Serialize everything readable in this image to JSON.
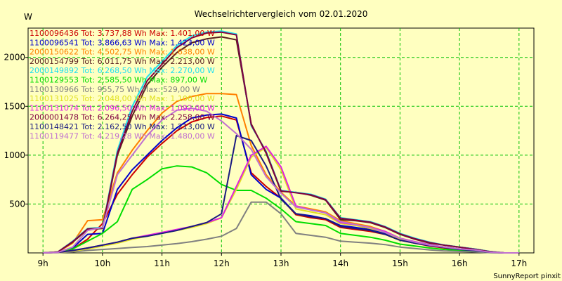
{
  "chart_data": {
    "type": "line",
    "title": "Wechselrichtervergleich vom 02.01.2020",
    "ylabel": "W",
    "xlabel": "",
    "footer": "SunnyReport pinxit",
    "xlim": [
      8.75,
      17.25
    ],
    "ylim": [
      0,
      2300
    ],
    "x_ticks": [
      {
        "value": 9,
        "label": "9h"
      },
      {
        "value": 10,
        "label": "10h"
      },
      {
        "value": 11,
        "label": "11h"
      },
      {
        "value": 12,
        "label": "12h"
      },
      {
        "value": 13,
        "label": "13h"
      },
      {
        "value": 14,
        "label": "14h"
      },
      {
        "value": 15,
        "label": "15h"
      },
      {
        "value": 16,
        "label": "16h"
      },
      {
        "value": 17,
        "label": "17h"
      }
    ],
    "y_ticks": [
      {
        "value": 500,
        "label": "500"
      },
      {
        "value": 1000,
        "label": "1000"
      },
      {
        "value": 1500,
        "label": "1500"
      },
      {
        "value": 2000,
        "label": "2000"
      }
    ],
    "grid": true,
    "legend_position": "top-left",
    "x": [
      9.0,
      9.25,
      9.5,
      9.75,
      10.0,
      10.25,
      10.5,
      10.75,
      11.0,
      11.25,
      11.5,
      11.75,
      12.0,
      12.25,
      12.5,
      12.75,
      13.0,
      13.25,
      13.5,
      13.75,
      14.0,
      14.25,
      14.5,
      14.75,
      15.0,
      15.25,
      15.5,
      15.75,
      16.0,
      16.25,
      16.5,
      16.75,
      17.0
    ],
    "series": [
      {
        "name": "1100096436",
        "legend": "1100096436 Tot: 3.737,88 Wh Max: 1.401,00 W",
        "color": "#cc0000",
        "values": [
          0,
          5,
          40,
          140,
          300,
          600,
          800,
          980,
          1120,
          1250,
          1340,
          1385,
          1400,
          1360,
          820,
          680,
          560,
          390,
          360,
          340,
          260,
          240,
          220,
          190,
          130,
          100,
          70,
          50,
          35,
          25,
          8,
          0,
          0
        ]
      },
      {
        "name": "1100096541",
        "legend": "1100096541 Tot: 3.866,63 Wh Max: 1.423,00 W",
        "color": "#0000cc",
        "values": [
          0,
          5,
          50,
          190,
          200,
          650,
          850,
          1000,
          1150,
          1280,
          1380,
          1410,
          1420,
          1380,
          800,
          650,
          560,
          400,
          380,
          350,
          280,
          260,
          240,
          200,
          140,
          110,
          80,
          60,
          40,
          30,
          10,
          0,
          0
        ]
      },
      {
        "name": "2000150622",
        "legend": "2000150622 Tot: 4.502,75 Wh Max: 1.638,00 W",
        "color": "#ff8000",
        "values": [
          0,
          10,
          100,
          330,
          340,
          820,
          1050,
          1250,
          1430,
          1550,
          1600,
          1630,
          1630,
          1620,
          1100,
          800,
          620,
          480,
          450,
          420,
          330,
          300,
          270,
          220,
          150,
          110,
          80,
          60,
          40,
          30,
          10,
          0,
          0
        ]
      },
      {
        "name": "2000154799",
        "legend": "2000154799 Tot: 6.011,75 Wh Max: 2.213,00 W",
        "color": "#5a2020",
        "values": [
          0,
          10,
          110,
          240,
          250,
          1000,
          1400,
          1720,
          1900,
          2050,
          2150,
          2190,
          2210,
          2180,
          1320,
          1020,
          630,
          620,
          590,
          540,
          340,
          330,
          310,
          260,
          190,
          140,
          100,
          80,
          60,
          40,
          15,
          0,
          0
        ]
      },
      {
        "name": "2000149892",
        "legend": "2000149892 Tot: 6.268,50 Wh Max: 2.270,00 W",
        "color": "#20e0f0",
        "values": [
          0,
          10,
          120,
          250,
          260,
          1050,
          1500,
          1800,
          1960,
          2120,
          2220,
          2260,
          2270,
          2240,
          1300,
          1040,
          640,
          620,
          600,
          550,
          360,
          340,
          320,
          270,
          200,
          150,
          110,
          80,
          60,
          40,
          15,
          0,
          0
        ]
      },
      {
        "name": "1100129553",
        "legend": "1100129553 Tot: 2.585,50 Wh Max: 897,00 W",
        "color": "#00dd00",
        "values": [
          0,
          5,
          40,
          120,
          200,
          320,
          650,
          750,
          860,
          890,
          880,
          820,
          700,
          640,
          640,
          560,
          450,
          320,
          300,
          280,
          200,
          180,
          160,
          130,
          90,
          70,
          50,
          35,
          25,
          15,
          5,
          0,
          0
        ]
      },
      {
        "name": "1100130966",
        "legend": "1100130966 Tot: 955,75 Wh Max: 529,00 W",
        "color": "#808080",
        "values": [
          0,
          3,
          10,
          25,
          35,
          45,
          55,
          65,
          80,
          95,
          115,
          140,
          170,
          250,
          520,
          520,
          400,
          200,
          180,
          160,
          120,
          110,
          100,
          85,
          60,
          45,
          30,
          20,
          15,
          10,
          3,
          0,
          0
        ]
      },
      {
        "name": "1100131025",
        "legend": "1100131025 Tot: 2.048,00 Wh Max: 1.100,00 W",
        "color": "#e0e020",
        "values": [
          0,
          5,
          20,
          40,
          70,
          100,
          140,
          170,
          200,
          230,
          260,
          300,
          360,
          650,
          980,
          1080,
          850,
          450,
          420,
          390,
          300,
          280,
          250,
          210,
          140,
          110,
          80,
          60,
          40,
          30,
          8,
          0,
          0
        ]
      },
      {
        "name": "1100131074",
        "legend": "1100131074 Tot: 2.096,50 Wh Max: 1.092,00 W",
        "color": "#e020e0",
        "values": [
          0,
          5,
          25,
          50,
          80,
          110,
          150,
          180,
          210,
          240,
          270,
          310,
          360,
          680,
          1000,
          1090,
          880,
          480,
          440,
          410,
          310,
          290,
          260,
          220,
          150,
          115,
          85,
          60,
          40,
          30,
          8,
          0,
          0
        ]
      },
      {
        "name": "2000001478",
        "legend": "2000001478 Tot: 6.264,25 Wh Max: 2.258,00 W",
        "color": "#800040",
        "values": [
          0,
          10,
          115,
          245,
          255,
          1020,
          1450,
          1760,
          1930,
          2100,
          2200,
          2250,
          2258,
          2230,
          1310,
          1030,
          635,
          615,
          595,
          545,
          355,
          335,
          315,
          265,
          195,
          145,
          105,
          78,
          58,
          38,
          14,
          0,
          0
        ]
      },
      {
        "name": "1100148421",
        "legend": "1100148421 Tot: 2.162,50 Wh Max: 1.213,00 W",
        "color": "#1a1a80",
        "values": [
          0,
          5,
          25,
          50,
          80,
          110,
          150,
          170,
          200,
          230,
          270,
          310,
          400,
          1200,
          1150,
          890,
          550,
          400,
          370,
          350,
          270,
          250,
          230,
          190,
          130,
          100,
          75,
          55,
          35,
          25,
          7,
          0,
          0
        ]
      },
      {
        "name": "1100119477",
        "legend": "1100119477 Tot: 4.219,28 Wh Max: 1.480,00 W",
        "color": "#c070d0",
        "values": [
          0,
          5,
          60,
          230,
          260,
          800,
          1000,
          1200,
          1360,
          1460,
          1480,
          1450,
          1350,
          1220,
          1060,
          780,
          610,
          470,
          440,
          410,
          320,
          290,
          260,
          210,
          150,
          110,
          80,
          60,
          40,
          30,
          8,
          0,
          0
        ]
      }
    ]
  }
}
